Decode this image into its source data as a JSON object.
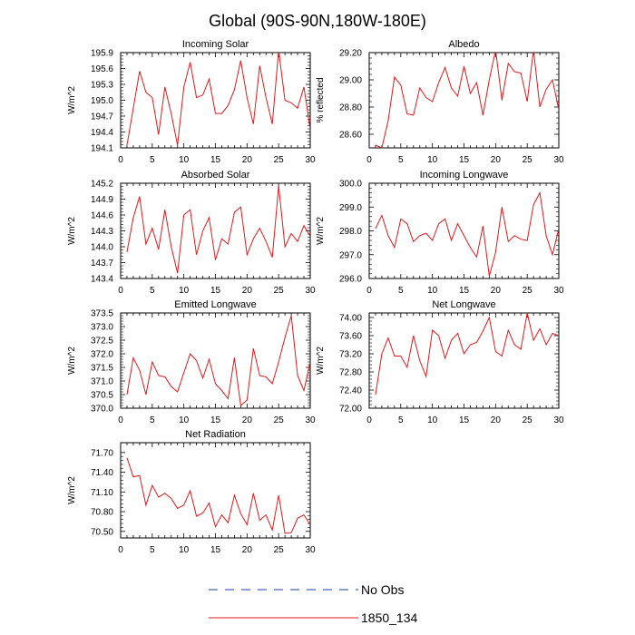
{
  "title": "Global (90S-90N,180W-180E)",
  "legend": [
    {
      "label": "No Obs",
      "color": "#1f3fa8",
      "dash": true
    },
    {
      "label": "1850_134",
      "color": "#e0191b",
      "dash": false
    }
  ],
  "chart_data": [
    {
      "type": "line",
      "title": "Incoming Solar",
      "ylabel": "W/m^2",
      "xlim": [
        0,
        30
      ],
      "xticks": [
        0,
        5,
        10,
        15,
        20,
        25,
        30
      ],
      "ylim": [
        194.1,
        195.9
      ],
      "yticks": [
        "194.1",
        "194.4",
        "194.7",
        "195.0",
        "195.3",
        "195.6",
        "195.9"
      ],
      "x": [
        1,
        2,
        3,
        4,
        5,
        6,
        7,
        8,
        9,
        10,
        11,
        12,
        13,
        14,
        15,
        16,
        17,
        18,
        19,
        20,
        21,
        22,
        23,
        24,
        25,
        26,
        27,
        28,
        29,
        30
      ],
      "series": [
        {
          "name": "1850_134",
          "values": [
            194.15,
            194.85,
            195.55,
            195.15,
            195.05,
            194.35,
            195.25,
            194.75,
            194.15,
            195.25,
            195.72,
            195.05,
            195.1,
            195.4,
            194.75,
            194.75,
            194.9,
            195.2,
            195.75,
            195.05,
            194.55,
            195.65,
            195.05,
            194.55,
            195.95,
            195.0,
            194.95,
            194.85,
            195.25,
            194.45
          ]
        }
      ]
    },
    {
      "type": "line",
      "title": "Albedo",
      "ylabel": "% reflected",
      "xlim": [
        0,
        30
      ],
      "xticks": [
        0,
        5,
        10,
        15,
        20,
        25,
        30
      ],
      "ylim": [
        28.5,
        29.2
      ],
      "yticks": [
        "28.60",
        "28.80",
        "29.00",
        "29.20"
      ],
      "x": [
        1,
        2,
        3,
        4,
        5,
        6,
        7,
        8,
        9,
        10,
        11,
        12,
        13,
        14,
        15,
        16,
        17,
        18,
        19,
        20,
        21,
        22,
        23,
        24,
        25,
        26,
        27,
        28,
        29,
        30
      ],
      "series": [
        {
          "name": "1850_134",
          "values": [
            28.52,
            28.5,
            28.7,
            29.02,
            28.96,
            28.75,
            28.74,
            28.94,
            28.87,
            28.84,
            28.98,
            29.09,
            28.94,
            28.88,
            29.1,
            28.9,
            28.98,
            28.74,
            29.0,
            29.22,
            28.85,
            29.12,
            29.06,
            29.05,
            28.84,
            29.22,
            28.8,
            28.93,
            29.0,
            28.78
          ]
        }
      ]
    },
    {
      "type": "line",
      "title": "Absorbed Solar",
      "ylabel": "W/m^2",
      "xlim": [
        0,
        30
      ],
      "xticks": [
        0,
        5,
        10,
        15,
        20,
        25,
        30
      ],
      "ylim": [
        143.4,
        145.2
      ],
      "yticks": [
        "143.4",
        "143.7",
        "144.0",
        "144.3",
        "144.6",
        "144.9",
        "145.2"
      ],
      "x": [
        1,
        2,
        3,
        4,
        5,
        6,
        7,
        8,
        9,
        10,
        11,
        12,
        13,
        14,
        15,
        16,
        17,
        18,
        19,
        20,
        21,
        22,
        23,
        24,
        25,
        26,
        27,
        28,
        29,
        30
      ],
      "series": [
        {
          "name": "1850_134",
          "values": [
            143.9,
            144.55,
            144.95,
            144.05,
            144.35,
            143.95,
            144.7,
            144.0,
            143.5,
            144.6,
            144.7,
            143.85,
            144.3,
            144.55,
            143.75,
            144.15,
            144.05,
            144.65,
            144.75,
            143.85,
            144.15,
            144.35,
            144.1,
            143.8,
            145.15,
            144.0,
            144.25,
            144.1,
            144.4,
            144.2
          ]
        }
      ]
    },
    {
      "type": "line",
      "title": "Incoming Longwave",
      "ylabel": "W/m^2",
      "xlim": [
        0,
        30
      ],
      "xticks": [
        0,
        5,
        10,
        15,
        20,
        25,
        30
      ],
      "ylim": [
        296.0,
        300.0
      ],
      "yticks": [
        "296.0",
        "297.0",
        "298.0",
        "299.0",
        "300.0"
      ],
      "x": [
        1,
        2,
        3,
        4,
        5,
        6,
        7,
        8,
        9,
        10,
        11,
        12,
        13,
        14,
        15,
        16,
        17,
        18,
        19,
        20,
        21,
        22,
        23,
        24,
        25,
        26,
        27,
        28,
        29,
        30
      ],
      "series": [
        {
          "name": "1850_134",
          "values": [
            298.1,
            298.65,
            297.8,
            297.3,
            298.5,
            298.3,
            297.55,
            297.8,
            297.9,
            297.6,
            298.3,
            298.5,
            297.6,
            298.3,
            297.8,
            297.3,
            296.9,
            298.2,
            296.1,
            297.1,
            299.0,
            297.55,
            297.8,
            297.65,
            297.6,
            299.1,
            299.6,
            297.8,
            297.0,
            298.1
          ]
        }
      ]
    },
    {
      "type": "line",
      "title": "Emitted Longwave",
      "ylabel": "W/m^2",
      "xlim": [
        0,
        30
      ],
      "xticks": [
        0,
        5,
        10,
        15,
        20,
        25,
        30
      ],
      "ylim": [
        370.0,
        373.5
      ],
      "yticks": [
        "370.0",
        "370.5",
        "371.0",
        "371.5",
        "372.0",
        "372.5",
        "373.0",
        "373.5"
      ],
      "x": [
        1,
        2,
        3,
        4,
        5,
        6,
        7,
        8,
        9,
        10,
        11,
        12,
        13,
        14,
        15,
        16,
        17,
        18,
        19,
        20,
        21,
        22,
        23,
        24,
        25,
        26,
        27,
        28,
        29,
        30
      ],
      "series": [
        {
          "name": "1850_134",
          "values": [
            370.5,
            371.85,
            371.4,
            370.5,
            371.7,
            371.2,
            371.15,
            370.8,
            370.6,
            371.3,
            372.0,
            371.75,
            371.1,
            371.8,
            370.9,
            370.65,
            370.35,
            371.85,
            370.1,
            370.3,
            372.2,
            371.2,
            371.15,
            370.9,
            371.7,
            372.6,
            373.4,
            371.2,
            370.65,
            371.7
          ]
        }
      ]
    },
    {
      "type": "line",
      "title": "Net Longwave",
      "ylabel": "W/m^2",
      "xlim": [
        0,
        30
      ],
      "xticks": [
        0,
        5,
        10,
        15,
        20,
        25,
        30
      ],
      "ylim": [
        72.0,
        74.1
      ],
      "yticks": [
        "72.00",
        "72.40",
        "72.80",
        "73.20",
        "73.60",
        "74.00"
      ],
      "x": [
        1,
        2,
        3,
        4,
        5,
        6,
        7,
        8,
        9,
        10,
        11,
        12,
        13,
        14,
        15,
        16,
        17,
        18,
        19,
        20,
        21,
        22,
        23,
        24,
        25,
        26,
        27,
        28,
        29,
        30
      ],
      "series": [
        {
          "name": "1850_134",
          "values": [
            72.3,
            73.2,
            73.55,
            73.15,
            73.15,
            72.9,
            73.6,
            73.05,
            72.7,
            73.72,
            73.6,
            73.1,
            73.5,
            73.65,
            73.2,
            73.4,
            73.45,
            73.7,
            74.0,
            73.25,
            73.15,
            73.72,
            73.4,
            73.3,
            74.1,
            73.5,
            73.75,
            73.4,
            73.65,
            73.6
          ]
        }
      ]
    },
    {
      "type": "line",
      "title": "Net Radiation",
      "ylabel": "W/m^2",
      "xlim": [
        0,
        30
      ],
      "xticks": [
        0,
        5,
        10,
        15,
        20,
        25,
        30
      ],
      "ylim": [
        70.4,
        71.85
      ],
      "yticks": [
        "70.50",
        "70.80",
        "71.10",
        "71.40",
        "71.70"
      ],
      "x": [
        1,
        2,
        3,
        4,
        5,
        6,
        7,
        8,
        9,
        10,
        11,
        12,
        13,
        14,
        15,
        16,
        17,
        18,
        19,
        20,
        21,
        22,
        23,
        24,
        25,
        26,
        27,
        28,
        29,
        30
      ],
      "series": [
        {
          "name": "1850_134",
          "values": [
            71.62,
            71.33,
            71.35,
            70.9,
            71.2,
            71.02,
            71.08,
            71.0,
            70.85,
            70.9,
            71.12,
            70.73,
            70.78,
            70.93,
            70.57,
            70.75,
            70.63,
            71.05,
            70.77,
            70.6,
            71.08,
            70.67,
            70.75,
            70.52,
            71.05,
            70.47,
            70.48,
            70.7,
            70.75,
            70.6
          ]
        }
      ]
    }
  ]
}
